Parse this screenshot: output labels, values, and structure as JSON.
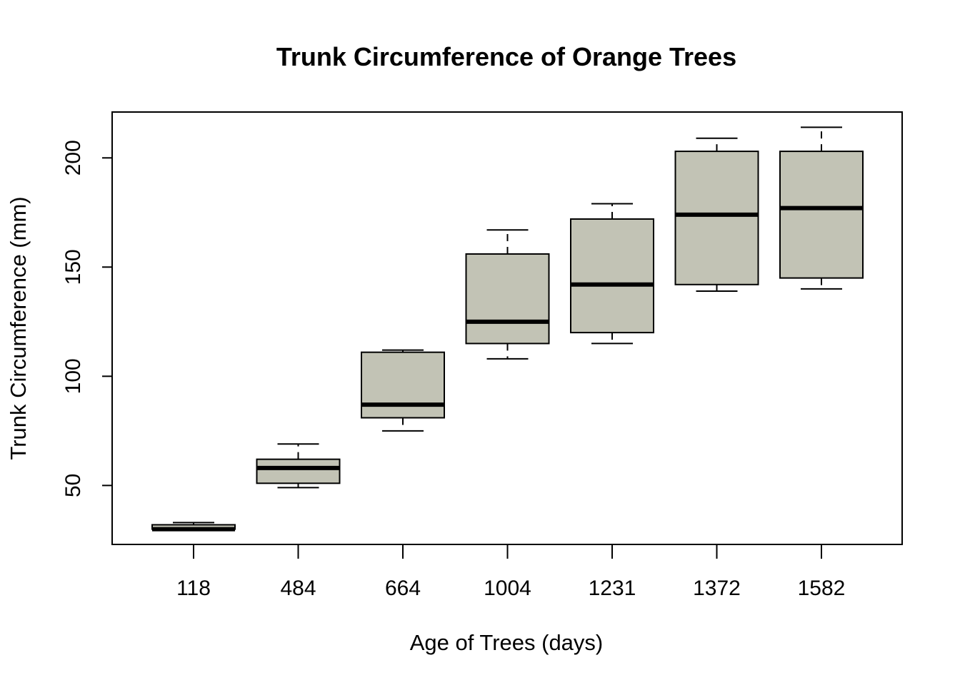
{
  "chart_data": {
    "type": "boxplot",
    "title": "Trunk Circumference of Orange Trees",
    "xlabel": "Age of Trees (days)",
    "ylabel": "Trunk Circumference (mm)",
    "categories": [
      "118",
      "484",
      "664",
      "1004",
      "1231",
      "1372",
      "1582"
    ],
    "y_ticks": [
      50,
      100,
      150,
      200
    ],
    "ylim": [
      23,
      221
    ],
    "boxes": [
      {
        "min": 30,
        "q1": 30,
        "median": 30,
        "q3": 32,
        "max": 33
      },
      {
        "min": 49,
        "q1": 51,
        "median": 58,
        "q3": 62,
        "max": 69
      },
      {
        "min": 75,
        "q1": 81,
        "median": 87,
        "q3": 111,
        "max": 112
      },
      {
        "min": 108,
        "q1": 115,
        "median": 125,
        "q3": 156,
        "max": 167
      },
      {
        "min": 115,
        "q1": 120,
        "median": 142,
        "q3": 172,
        "max": 179
      },
      {
        "min": 139,
        "q1": 142,
        "median": 174,
        "q3": 203,
        "max": 209
      },
      {
        "min": 140,
        "q1": 145,
        "median": 177,
        "q3": 203,
        "max": 214
      }
    ],
    "box_color": "#c2c3b5",
    "line_color": "#000000",
    "grid": false,
    "legend": "none"
  }
}
